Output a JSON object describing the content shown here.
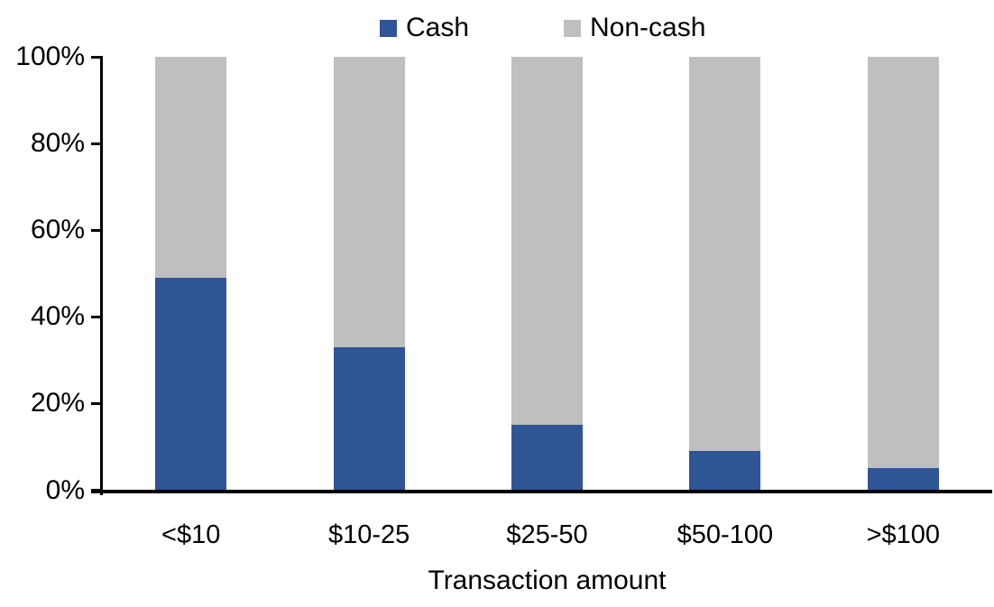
{
  "chart_data": {
    "type": "bar",
    "stacked": true,
    "percent_stacked": true,
    "title": "",
    "xlabel": "Transaction amount",
    "ylabel": "",
    "categories": [
      "<$10",
      "$10-25",
      "$25-50",
      "$50-100",
      ">$100"
    ],
    "series": [
      {
        "name": "Cash",
        "color": "#2F5597",
        "values": [
          49,
          33,
          15,
          9,
          5
        ]
      },
      {
        "name": "Non-cash",
        "color": "#BFBFBF",
        "values": [
          51,
          67,
          85,
          91,
          95
        ]
      }
    ],
    "ylim": [
      0,
      100
    ],
    "yticks": [
      "0%",
      "20%",
      "40%",
      "60%",
      "80%",
      "100%"
    ],
    "legend_position": "top",
    "grid": false
  },
  "colors": {
    "cash": "#2F5597",
    "noncash": "#BFBFBF",
    "axis": "#000000",
    "background": "#ffffff"
  }
}
